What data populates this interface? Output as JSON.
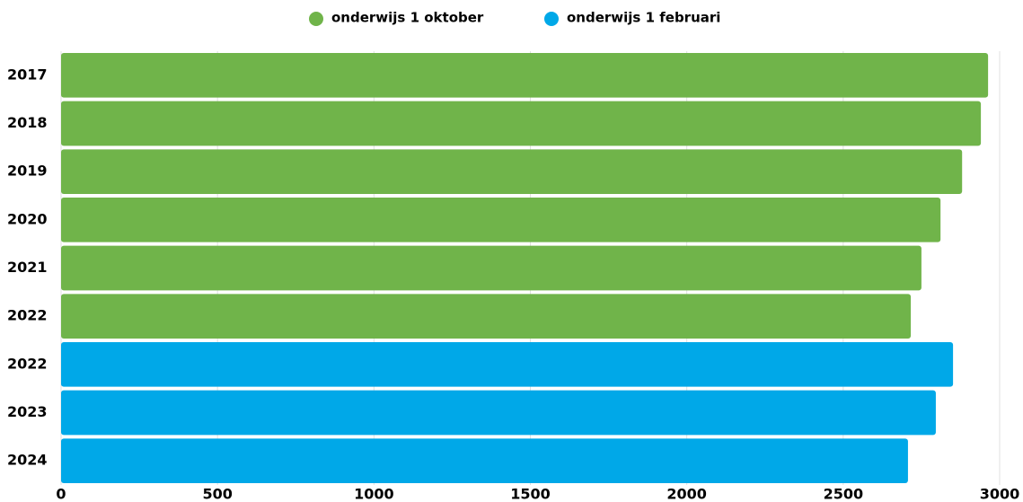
{
  "chart_data": {
    "type": "bar",
    "orientation": "horizontal",
    "categories": [
      "2017",
      "2018",
      "2019",
      "2020",
      "2021",
      "2022",
      "2022",
      "2023",
      "2024"
    ],
    "series": [
      {
        "name": "onderwijs 1 oktober",
        "color": "#70b44a",
        "values": [
          2963,
          2940,
          2880,
          2811,
          2750,
          2716,
          null,
          null,
          null
        ]
      },
      {
        "name": "onderwijs 1 februari",
        "color": "#00a8e8",
        "values": [
          null,
          null,
          null,
          null,
          null,
          null,
          2851,
          2796,
          2707
        ]
      }
    ],
    "xlim": [
      0,
      3000
    ],
    "xticks": [
      0,
      500,
      1000,
      1500,
      2000,
      2500,
      3000
    ],
    "grid": true,
    "legend": "top"
  }
}
